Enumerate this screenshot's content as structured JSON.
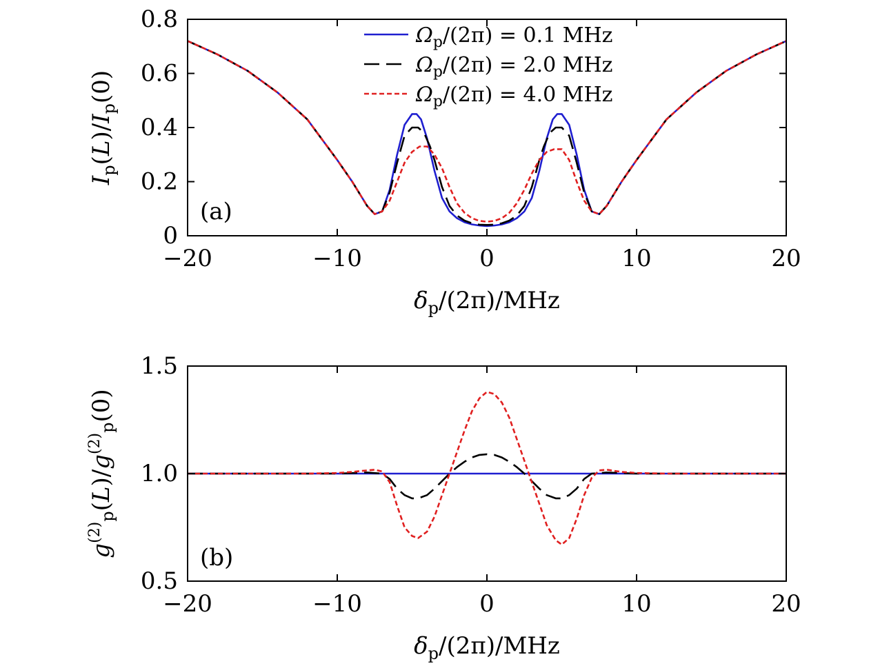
{
  "chart_data": [
    {
      "type": "line",
      "panel_label": "(a)",
      "ylabel": "I_p(L)/I_p(0)",
      "xlabel": "δ_p/(2π)/MHz",
      "xlim": [
        -20,
        20
      ],
      "ylim": [
        0,
        0.8
      ],
      "xticks": [
        "−20",
        "−10",
        "0",
        "10",
        "20"
      ],
      "xtick_values": [
        -20,
        -10,
        0,
        10,
        20
      ],
      "yticks": [
        "0",
        "0.2",
        "0.4",
        "0.6",
        "0.8"
      ],
      "ytick_values": [
        0,
        0.2,
        0.4,
        0.6,
        0.8
      ],
      "legend_position": "top-center",
      "grid": false,
      "series": [
        {
          "name": "Ω_p/(2π) = 0.1 MHz",
          "color": "#1f1fd0",
          "dash": "solid",
          "x": [
            -20,
            -18,
            -16,
            -14,
            -12,
            -10,
            -9,
            -8,
            -7.5,
            -7,
            -6.5,
            -6,
            -5.5,
            -5,
            -4.7,
            -4.4,
            -4,
            -3.5,
            -3,
            -2.5,
            -2,
            -1.5,
            -1,
            -0.5,
            0,
            0.5,
            1,
            1.5,
            2,
            2.5,
            3,
            3.5,
            4,
            4.4,
            4.7,
            5,
            5.5,
            6,
            6.5,
            7,
            7.5,
            8,
            9,
            10,
            12,
            14,
            16,
            18,
            20
          ],
          "y": [
            0.72,
            0.67,
            0.61,
            0.53,
            0.43,
            0.28,
            0.2,
            0.11,
            0.08,
            0.09,
            0.17,
            0.3,
            0.41,
            0.45,
            0.45,
            0.43,
            0.36,
            0.24,
            0.14,
            0.09,
            0.065,
            0.05,
            0.042,
            0.038,
            0.036,
            0.038,
            0.042,
            0.05,
            0.065,
            0.09,
            0.14,
            0.24,
            0.36,
            0.43,
            0.45,
            0.45,
            0.41,
            0.3,
            0.17,
            0.09,
            0.08,
            0.11,
            0.2,
            0.28,
            0.43,
            0.53,
            0.61,
            0.67,
            0.72
          ]
        },
        {
          "name": "Ω_p/(2π) = 2.0 MHz",
          "color": "#000000",
          "dash": "long-dash",
          "x": [
            -20,
            -18,
            -16,
            -14,
            -12,
            -10,
            -9,
            -8,
            -7.5,
            -7,
            -6.5,
            -6,
            -5.5,
            -5,
            -4.6,
            -4.2,
            -3.8,
            -3.5,
            -3,
            -2.5,
            -2,
            -1.5,
            -1,
            -0.5,
            0,
            0.5,
            1,
            1.5,
            2,
            2.5,
            3,
            3.5,
            3.8,
            4.2,
            4.6,
            5,
            5.5,
            6,
            6.5,
            7,
            7.5,
            8,
            9,
            10,
            12,
            14,
            16,
            18,
            20
          ],
          "y": [
            0.72,
            0.67,
            0.61,
            0.53,
            0.43,
            0.28,
            0.2,
            0.11,
            0.08,
            0.09,
            0.16,
            0.27,
            0.37,
            0.4,
            0.4,
            0.38,
            0.33,
            0.28,
            0.18,
            0.11,
            0.075,
            0.056,
            0.046,
            0.041,
            0.04,
            0.041,
            0.046,
            0.056,
            0.075,
            0.11,
            0.18,
            0.28,
            0.33,
            0.38,
            0.4,
            0.4,
            0.37,
            0.27,
            0.16,
            0.09,
            0.08,
            0.11,
            0.2,
            0.28,
            0.43,
            0.53,
            0.61,
            0.67,
            0.72
          ]
        },
        {
          "name": "Ω_p/(2π) = 4.0 MHz",
          "color": "#e02020",
          "dash": "short-dash",
          "x": [
            -20,
            -18,
            -16,
            -14,
            -12,
            -10,
            -9,
            -8,
            -7.5,
            -7,
            -6.5,
            -6,
            -5.5,
            -5,
            -4.5,
            -4,
            -3.5,
            -3,
            -2.5,
            -2,
            -1.5,
            -1,
            -0.5,
            0,
            0.5,
            1,
            1.5,
            2,
            2.5,
            3,
            3.5,
            4,
            4.5,
            5,
            5.5,
            6,
            6.5,
            7,
            7.5,
            8,
            9,
            10,
            12,
            14,
            16,
            18,
            20
          ],
          "y": [
            0.72,
            0.67,
            0.61,
            0.53,
            0.43,
            0.28,
            0.2,
            0.11,
            0.08,
            0.09,
            0.13,
            0.2,
            0.27,
            0.31,
            0.33,
            0.33,
            0.3,
            0.25,
            0.18,
            0.12,
            0.085,
            0.065,
            0.055,
            0.052,
            0.055,
            0.065,
            0.085,
            0.12,
            0.17,
            0.23,
            0.28,
            0.31,
            0.32,
            0.32,
            0.28,
            0.2,
            0.13,
            0.09,
            0.08,
            0.11,
            0.2,
            0.28,
            0.43,
            0.53,
            0.61,
            0.67,
            0.72
          ]
        }
      ]
    },
    {
      "type": "line",
      "panel_label": "(b)",
      "ylabel": "g_p^(2)(L)/g_p^(2)(0)",
      "xlabel": "δ_p/(2π)/MHz",
      "xlim": [
        -20,
        20
      ],
      "ylim": [
        0.5,
        1.5
      ],
      "xticks": [
        "−20",
        "−10",
        "0",
        "10",
        "20"
      ],
      "xtick_values": [
        -20,
        -10,
        0,
        10,
        20
      ],
      "yticks": [
        "0.5",
        "1.0",
        "1.5"
      ],
      "ytick_values": [
        0.5,
        1.0,
        1.5
      ],
      "grid": false,
      "series": [
        {
          "name": "Ω_p/(2π) = 0.1 MHz",
          "color": "#1f1fd0",
          "dash": "solid",
          "x": [
            -20,
            20
          ],
          "y": [
            1.0,
            1.0
          ]
        },
        {
          "name": "Ω_p/(2π) = 2.0 MHz",
          "color": "#000000",
          "dash": "long-dash",
          "x": [
            -20,
            -10,
            -8,
            -7,
            -6.5,
            -6,
            -5.5,
            -5,
            -4.6,
            -4,
            -3.5,
            -3,
            -2.5,
            -2,
            -1.5,
            -1,
            -0.5,
            0,
            0.5,
            1,
            1.5,
            2,
            2.5,
            3,
            3.5,
            4,
            4.6,
            5,
            5.5,
            6,
            6.5,
            7,
            8,
            10,
            20
          ],
          "y": [
            1.0,
            1.0,
            1.005,
            1.0,
            0.975,
            0.93,
            0.9,
            0.885,
            0.885,
            0.9,
            0.93,
            0.965,
            1.0,
            1.03,
            1.055,
            1.075,
            1.087,
            1.09,
            1.087,
            1.075,
            1.055,
            1.03,
            1.0,
            0.965,
            0.93,
            0.9,
            0.885,
            0.885,
            0.9,
            0.93,
            0.975,
            1.0,
            1.005,
            1.0,
            1.0
          ]
        },
        {
          "name": "Ω_p/(2π) = 4.0 MHz",
          "color": "#e02020",
          "dash": "short-dash",
          "x": [
            -20,
            -12,
            -10,
            -9,
            -8,
            -7.5,
            -7,
            -6.5,
            -6,
            -5.5,
            -5,
            -4.6,
            -4,
            -3.5,
            -3,
            -2.5,
            -2,
            -1.5,
            -1,
            -0.5,
            0,
            0.5,
            1,
            1.5,
            2,
            2.5,
            3,
            3.5,
            4,
            4.6,
            5,
            5.5,
            6,
            6.5,
            7,
            7.5,
            8,
            9,
            10,
            12,
            20
          ],
          "y": [
            1.0,
            1.0,
            1.003,
            1.008,
            1.015,
            1.018,
            1.01,
            0.96,
            0.85,
            0.75,
            0.71,
            0.7,
            0.73,
            0.8,
            0.9,
            1.0,
            1.1,
            1.2,
            1.29,
            1.35,
            1.38,
            1.37,
            1.33,
            1.26,
            1.16,
            1.06,
            0.96,
            0.86,
            0.76,
            0.69,
            0.67,
            0.7,
            0.79,
            0.9,
            0.98,
            1.015,
            1.018,
            1.008,
            1.003,
            1.0,
            1.0
          ]
        }
      ]
    }
  ]
}
